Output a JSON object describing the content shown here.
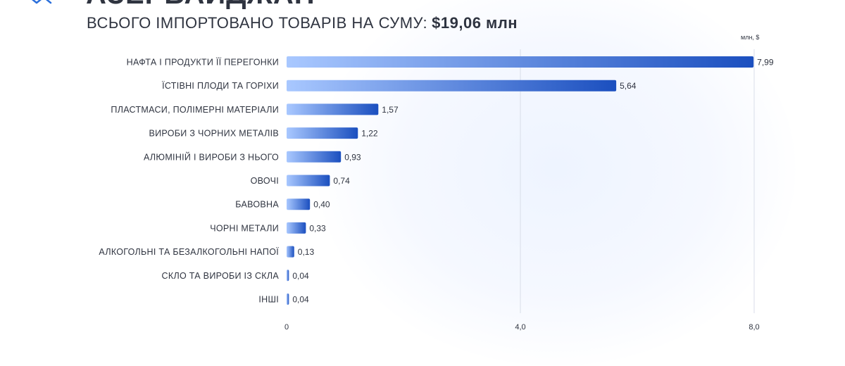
{
  "header": {
    "country": "АЗЕРБАЙДЖАН",
    "subtitle_text": "ВСЬОГО ІМПОРТОВАНО ТОВАРІВ НА СУМУ:",
    "subtitle_total": "$19,06 млн"
  },
  "colors": {
    "bar_start": "#a9c8ff",
    "bar_end": "#1b4fbf",
    "text": "#2f3440",
    "grid": "#d9dee8"
  },
  "chart_data": {
    "type": "bar",
    "orientation": "horizontal",
    "unit": "млн, $",
    "categories": [
      "НАФТА І ПРОДУКТИ ЇЇ ПЕРЕГОНКИ",
      "ЇСТІВНІ ПЛОДИ ТА ГОРІХИ",
      "ПЛАСТМАСИ, ПОЛІМЕРНІ МАТЕРІАЛИ",
      "ВИРОБИ З ЧОРНИХ МЕТАЛІВ",
      "АЛЮМІНІЙ І ВИРОБИ З НЬОГО",
      "ОВОЧІ",
      "БАВОВНА",
      "ЧОРНІ МЕТАЛИ",
      "АЛКОГОЛЬНІ ТА БЕЗАЛКОГОЛЬНІ НАПОЇ",
      "СКЛО ТА ВИРОБИ ІЗ СКЛА",
      "ІНШІ"
    ],
    "values": [
      7.99,
      5.64,
      1.57,
      1.22,
      0.93,
      0.74,
      0.4,
      0.33,
      0.13,
      0.04,
      0.04
    ],
    "value_labels": [
      "7,99",
      "5,64",
      "1,57",
      "1,22",
      "0,93",
      "0,74",
      "0,40",
      "0,33",
      "0,13",
      "0,04",
      "0,04"
    ],
    "xticks": [
      0,
      4,
      8
    ],
    "xtick_labels": [
      "0",
      "4,0",
      "8,0"
    ],
    "xlim": [
      0,
      8
    ],
    "grid": true
  }
}
